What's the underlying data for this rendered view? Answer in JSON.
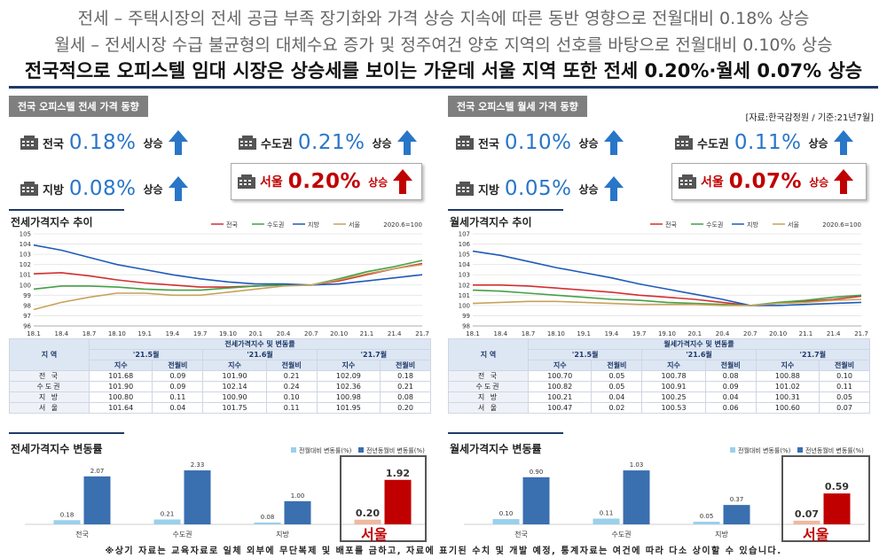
{
  "headlines": {
    "line1": "전세 – 주택시장의 전세 공급 부족 장기화와 가격 상승 지속에 따른 동반 영향으로 전월대비 0.18% 상승",
    "line2": "월세 – 전세시장 수급 불균형의 대체수요 증가 및 정주여건 양호 지역의 선호를 바탕으로 전월대비 0.10% 상승",
    "line3": "전국적으로 오피스텔 임대 시장은 상승세를 보이는 가운데 서울 지역 또한 전세 0.20%·월세 0.07% 상승"
  },
  "colors": {
    "nation": "#d32f2f",
    "metro": "#43a047",
    "local": "#1e5bb8",
    "seoul": "#c9a15b",
    "accent": "#2876c8",
    "red": "#c00000",
    "navy": "#1f3a68",
    "barLight": "#9ad0ea",
    "barDark": "#3a6fb0"
  },
  "left": {
    "panel_title": "전국 오피스텔 전세 가격 동향",
    "stats": [
      {
        "label": "전국",
        "value": "0.18%",
        "dir": "상승",
        "icon": "building-icon"
      },
      {
        "label": "수도권",
        "value": "0.21%",
        "dir": "상승",
        "icon": "building-icon"
      },
      {
        "label": "지방",
        "value": "0.08%",
        "dir": "상승",
        "icon": "building-icon"
      },
      {
        "label": "서울",
        "value": "0.20%",
        "dir": "상승",
        "icon": "building-icon"
      }
    ],
    "line_title": "전세가격지수 추이",
    "bar_title": "전세가격지수 변동률",
    "table": {
      "title": "전세가격지수 및 변동률",
      "region_header": "지 역",
      "months": [
        "'21.5월",
        "'21.6월",
        "'21.7월"
      ],
      "sub": [
        "지수",
        "전월비"
      ],
      "rows": [
        {
          "name": "전 국",
          "vals": [
            "101.68",
            "0.09",
            "101.90",
            "0.21",
            "102.09",
            "0.18"
          ]
        },
        {
          "name": "수도권",
          "vals": [
            "101.90",
            "0.09",
            "102.14",
            "0.24",
            "102.36",
            "0.21"
          ]
        },
        {
          "name": "지 방",
          "vals": [
            "100.80",
            "0.11",
            "100.90",
            "0.10",
            "100.98",
            "0.08"
          ]
        },
        {
          "name": "서 울",
          "vals": [
            "101.64",
            "0.04",
            "101.75",
            "0.11",
            "101.95",
            "0.20"
          ]
        }
      ]
    }
  },
  "right": {
    "panel_title": "전국 오피스텔 월세 가격 동향",
    "source": "[자료:한국감정원 / 기준:21년7월]",
    "stats": [
      {
        "label": "전국",
        "value": "0.10%",
        "dir": "상승",
        "icon": "building-icon"
      },
      {
        "label": "수도권",
        "value": "0.11%",
        "dir": "상승",
        "icon": "building-icon"
      },
      {
        "label": "지방",
        "value": "0.05%",
        "dir": "상승",
        "icon": "building-icon"
      },
      {
        "label": "서울",
        "value": "0.07%",
        "dir": "상승",
        "icon": "building-icon"
      }
    ],
    "line_title": "월세가격지수 추이",
    "bar_title": "월세가격지수 변동률",
    "table": {
      "title": "월세가격지수 및 변동률",
      "region_header": "지 역",
      "months": [
        "'21.5월",
        "'21.6월",
        "'21.7월"
      ],
      "sub": [
        "지수",
        "전월비"
      ],
      "rows": [
        {
          "name": "전 국",
          "vals": [
            "100.70",
            "0.05",
            "100.78",
            "0.08",
            "100.88",
            "0.10"
          ]
        },
        {
          "name": "수도권",
          "vals": [
            "100.82",
            "0.05",
            "100.91",
            "0.09",
            "101.02",
            "0.11"
          ]
        },
        {
          "name": "지 방",
          "vals": [
            "100.21",
            "0.04",
            "100.25",
            "0.04",
            "100.31",
            "0.05"
          ]
        },
        {
          "name": "서 울",
          "vals": [
            "100.47",
            "0.02",
            "100.53",
            "0.06",
            "100.60",
            "0.07"
          ]
        }
      ]
    }
  },
  "chart_data": [
    {
      "type": "line",
      "title": "전세가격지수 추이",
      "note": "2020.6=100",
      "x": [
        "18.1",
        "18.4",
        "18.7",
        "18.10",
        "19.1",
        "19.4",
        "19.7",
        "19.10",
        "20.1",
        "20.4",
        "20.7",
        "20.10",
        "21.1",
        "21.4",
        "21.7"
      ],
      "ylim": [
        96,
        105
      ],
      "yticks": [
        96,
        97,
        98,
        99,
        100,
        101,
        102,
        103,
        104,
        105
      ],
      "series": [
        {
          "name": "전국",
          "color": "#d32f2f",
          "values": [
            101.1,
            101.2,
            100.9,
            100.5,
            100.2,
            100.0,
            99.8,
            99.8,
            99.9,
            100.0,
            100.0,
            100.4,
            101.0,
            101.6,
            102.1
          ]
        },
        {
          "name": "수도권",
          "color": "#43a047",
          "values": [
            99.6,
            99.9,
            99.9,
            99.8,
            99.6,
            99.5,
            99.5,
            99.7,
            99.9,
            100.0,
            100.0,
            100.6,
            101.3,
            101.8,
            102.4
          ]
        },
        {
          "name": "지방",
          "color": "#1e5bb8",
          "values": [
            103.9,
            103.4,
            102.7,
            102.0,
            101.5,
            101.0,
            100.6,
            100.3,
            100.1,
            100.1,
            100.0,
            100.1,
            100.4,
            100.7,
            101.0
          ]
        },
        {
          "name": "서울",
          "color": "#c9a15b",
          "values": [
            97.6,
            98.3,
            98.8,
            99.2,
            99.2,
            99.0,
            99.0,
            99.3,
            99.6,
            99.9,
            100.0,
            100.5,
            101.1,
            101.6,
            102.0
          ]
        }
      ]
    },
    {
      "type": "line",
      "title": "월세가격지수 추이",
      "note": "2020.6=100",
      "x": [
        "18.1",
        "18.4",
        "18.7",
        "18.10",
        "19.1",
        "19.4",
        "19.7",
        "19.10",
        "20.1",
        "20.4",
        "20.7",
        "20.10",
        "21.1",
        "21.4",
        "21.7"
      ],
      "ylim": [
        98,
        107
      ],
      "yticks": [
        98,
        99,
        100,
        101,
        102,
        103,
        104,
        105,
        106,
        107
      ],
      "series": [
        {
          "name": "전국",
          "color": "#d32f2f",
          "values": [
            102.0,
            102.0,
            101.9,
            101.7,
            101.5,
            101.3,
            101.0,
            100.8,
            100.6,
            100.3,
            100.0,
            100.2,
            100.4,
            100.6,
            100.9
          ]
        },
        {
          "name": "수도권",
          "color": "#43a047",
          "values": [
            101.5,
            101.4,
            101.2,
            101.0,
            100.8,
            100.6,
            100.5,
            100.3,
            100.2,
            100.1,
            100.0,
            100.3,
            100.5,
            100.8,
            101.0
          ]
        },
        {
          "name": "지방",
          "color": "#1e5bb8",
          "values": [
            105.3,
            104.9,
            104.3,
            103.7,
            103.2,
            102.7,
            102.1,
            101.6,
            101.1,
            100.6,
            100.0,
            100.0,
            100.1,
            100.2,
            100.3
          ]
        },
        {
          "name": "서울",
          "color": "#c9a15b",
          "values": [
            100.2,
            100.3,
            100.4,
            100.4,
            100.3,
            100.2,
            100.1,
            100.1,
            100.1,
            100.0,
            100.0,
            100.2,
            100.3,
            100.5,
            100.6
          ]
        }
      ]
    },
    {
      "type": "bar",
      "title": "전세가격지수 변동률",
      "categories": [
        "전국",
        "수도권",
        "지방",
        "서울"
      ],
      "series": [
        {
          "name": "전월대비 변동률(%)",
          "values": [
            0.18,
            0.21,
            0.08,
            0.2
          ]
        },
        {
          "name": "전년동월비 변동률(%)",
          "values": [
            2.07,
            2.33,
            1.0,
            1.92
          ]
        }
      ],
      "ylim": [
        0,
        2.6
      ]
    },
    {
      "type": "bar",
      "title": "월세가격지수 변동률",
      "categories": [
        "전국",
        "수도권",
        "지방",
        "서울"
      ],
      "series": [
        {
          "name": "전월대비 변동률(%)",
          "values": [
            0.1,
            0.11,
            0.05,
            0.07
          ]
        },
        {
          "name": "전년동월비 변동률(%)",
          "values": [
            0.9,
            1.03,
            0.37,
            0.59
          ]
        }
      ],
      "ylim": [
        0,
        1.15
      ]
    }
  ],
  "footnote": "※상기 자료는 교육자료로 일체 외부에 무단복제 및 배포를 금하고, 자료에 표기된 수치 및 개발 예정, 통계자료는 여건에 따라 다소 상이할 수 있습니다."
}
